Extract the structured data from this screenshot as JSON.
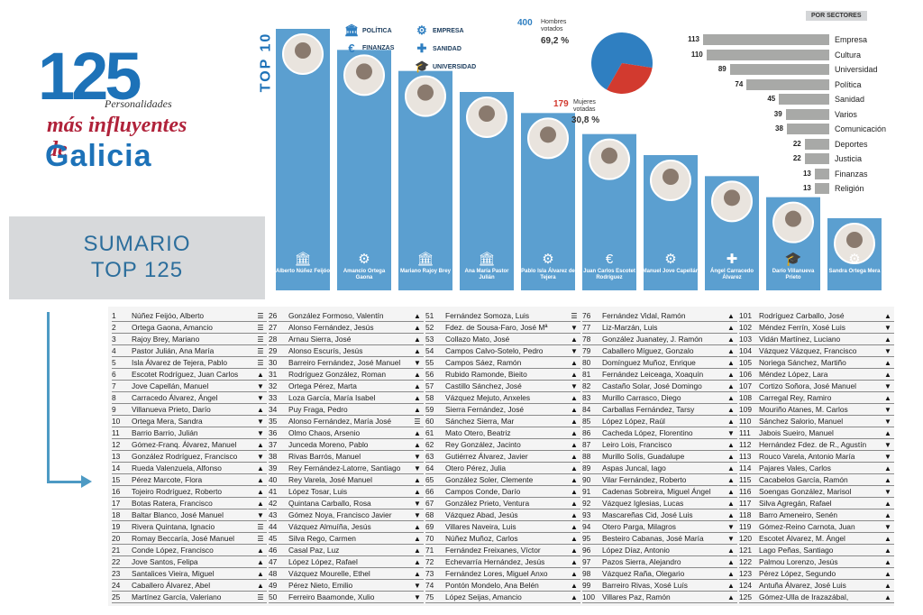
{
  "logo": {
    "number": "125",
    "line1": "Personalidades",
    "line2": "más influyentes de",
    "line3": "Galicia"
  },
  "sumario": {
    "line1": "SUMARIO",
    "line2": "TOP 125"
  },
  "top10": {
    "label": "TOP 10",
    "legend": [
      {
        "icon": "columns-icon",
        "glyph": "🏛",
        "label": "POLÍTICA"
      },
      {
        "icon": "euro-icon",
        "glyph": "€",
        "label": "FINANZAS"
      },
      {
        "icon": "gears-icon",
        "glyph": "⚙",
        "label": "EMPRESA"
      },
      {
        "icon": "cross-icon",
        "glyph": "✚",
        "label": "SANIDAD"
      },
      {
        "icon": "mortarboard-icon",
        "glyph": "🎓",
        "label": "UNIVERSIDAD"
      }
    ],
    "bars": [
      {
        "name": "Alberto Núñez Feijóo",
        "glyph": "🏛",
        "rank": 1
      },
      {
        "name": "Amancio Ortega Gaona",
        "glyph": "⚙",
        "rank": 2
      },
      {
        "name": "Mariano Rajoy Brey",
        "glyph": "🏛",
        "rank": 3
      },
      {
        "name": "Ana María Pastor Julián",
        "glyph": "🏛",
        "rank": 4
      },
      {
        "name": "Pablo Isla Álvarez de Tejera",
        "glyph": "⚙",
        "rank": 5
      },
      {
        "name": "Juan Carlos Escotet Rodríguez",
        "glyph": "€",
        "rank": 6
      },
      {
        "name": "Manuel Jove Capellán",
        "glyph": "⚙",
        "rank": 7
      },
      {
        "name": "Ángel Carracedo Álvarez",
        "glyph": "✚",
        "rank": 8
      },
      {
        "name": "Darío Villanueva Prieto",
        "glyph": "🎓",
        "rank": 9
      },
      {
        "name": "Sandra Ortega Mera",
        "glyph": "⚙",
        "rank": 10
      }
    ]
  },
  "pie": {
    "men_count": "400",
    "men_label": "Hombres votados",
    "men_pct": "69,2 %",
    "women_count": "179",
    "women_label": "Mujeres votadas",
    "women_pct": "30,8 %",
    "colors": {
      "men": "#2f7fc1",
      "women": "#d23a2f"
    }
  },
  "chart_data": [
    {
      "type": "pie",
      "categories": [
        "Hombres votados",
        "Mujeres votadas"
      ],
      "values": [
        400,
        179
      ],
      "percentages": [
        "69,2 %",
        "30,8 %"
      ]
    },
    {
      "type": "bar",
      "title": "POR SECTORES",
      "categories": [
        "Empresa",
        "Cultura",
        "Universidad",
        "Política",
        "Sanidad",
        "Varios",
        "Comunicación",
        "Deportes",
        "Justicia",
        "Finanzas",
        "Religión"
      ],
      "values": [
        113,
        110,
        89,
        74,
        45,
        39,
        38,
        22,
        22,
        13,
        13
      ]
    }
  ],
  "list": {
    "columns": [
      [
        {
          "n": "1",
          "name": "Núñez Feijóo, Alberto",
          "t": "eq"
        },
        {
          "n": "2",
          "name": "Ortega Gaona, Amancio",
          "t": "eq"
        },
        {
          "n": "3",
          "name": "Rajoy Brey, Mariano",
          "t": "eq"
        },
        {
          "n": "4",
          "name": "Pastor Julián, Ana María",
          "t": "eq"
        },
        {
          "n": "5",
          "name": "Isla Álvarez de Tejera, Pablo",
          "t": "eq"
        },
        {
          "n": "6",
          "name": "Escotet Rodríguez, Juan Carlos",
          "t": "up"
        },
        {
          "n": "7",
          "name": "Jove Capellán, Manuel",
          "t": "down"
        },
        {
          "n": "8",
          "name": "Carracedo Álvarez, Ángel",
          "t": "down"
        },
        {
          "n": "9",
          "name": "Villanueva Prieto, Darío",
          "t": "up"
        },
        {
          "n": "10",
          "name": "Ortega Mera, Sandra",
          "t": "down"
        },
        {
          "n": "11",
          "name": "Barrio Barrio, Julián",
          "t": "down"
        },
        {
          "n": "12",
          "name": "Gómez-Franq. Álvarez, Manuel",
          "t": "up"
        },
        {
          "n": "13",
          "name": "González Rodríguez, Francisco",
          "t": "down"
        },
        {
          "n": "14",
          "name": "Rueda Valenzuela, Alfonso",
          "t": "up"
        },
        {
          "n": "15",
          "name": "Pérez Marcote, Flora",
          "t": "up"
        },
        {
          "n": "16",
          "name": "Tojeiro Rodríguez, Roberto",
          "t": "up"
        },
        {
          "n": "17",
          "name": "Botas Ratera, Francisco",
          "t": "up"
        },
        {
          "n": "18",
          "name": "Baltar Blanco, José Manuel",
          "t": "down"
        },
        {
          "n": "19",
          "name": "Rivera Quintana, Ignacio",
          "t": "eq"
        },
        {
          "n": "20",
          "name": "Romay Beccaría, José Manuel",
          "t": "eq"
        },
        {
          "n": "21",
          "name": "Conde López, Francisco",
          "t": "up"
        },
        {
          "n": "22",
          "name": "Jove Santos, Felipa",
          "t": "up"
        },
        {
          "n": "23",
          "name": "Santalices Vieira, Miguel",
          "t": "up"
        },
        {
          "n": "24",
          "name": "Caballero Álvarez, Abel",
          "t": "up"
        },
        {
          "n": "25",
          "name": "Martínez García, Valeriano",
          "t": "eq"
        }
      ],
      [
        {
          "n": "26",
          "name": "González Formoso, Valentín",
          "t": "up"
        },
        {
          "n": "27",
          "name": "Alonso Fernández, Jesús",
          "t": "up"
        },
        {
          "n": "28",
          "name": "Arnau Sierra, José",
          "t": "up"
        },
        {
          "n": "29",
          "name": "Alonso Escurís, Jesús",
          "t": "up"
        },
        {
          "n": "30",
          "name": "Barreiro Fernández, José Manuel",
          "t": "down"
        },
        {
          "n": "31",
          "name": "Rodríguez González, Roman",
          "t": "up"
        },
        {
          "n": "32",
          "name": "Ortega Pérez, Marta",
          "t": "up"
        },
        {
          "n": "33",
          "name": "Loza García, María Isabel",
          "t": "up"
        },
        {
          "n": "34",
          "name": "Puy Fraga, Pedro",
          "t": "up"
        },
        {
          "n": "35",
          "name": "Alonso Fernández, María José",
          "t": "eq"
        },
        {
          "n": "36",
          "name": "Olmo Chaos, Arsenio",
          "t": "up"
        },
        {
          "n": "37",
          "name": "Junceda Moreno, Pablo",
          "t": "up"
        },
        {
          "n": "38",
          "name": "Rivas Barrós, Manuel",
          "t": "down"
        },
        {
          "n": "39",
          "name": "Rey Fernández-Latorre, Santiago",
          "t": "down"
        },
        {
          "n": "40",
          "name": "Rey Varela, José Manuel",
          "t": "up"
        },
        {
          "n": "41",
          "name": "López Tosar, Luis",
          "t": "up"
        },
        {
          "n": "42",
          "name": "Quintana Carballo, Rosa",
          "t": "down"
        },
        {
          "n": "43",
          "name": "Gómez Noya, Francisco Javier",
          "t": "down"
        },
        {
          "n": "44",
          "name": "Vázquez Almuíña, Jesús",
          "t": "up"
        },
        {
          "n": "45",
          "name": "Silva Rego, Carmen",
          "t": "up"
        },
        {
          "n": "46",
          "name": "Casal Paz, Luz",
          "t": "up"
        },
        {
          "n": "47",
          "name": "López López, Rafael",
          "t": "up"
        },
        {
          "n": "48",
          "name": "Vázquez Mourelle, Ethel",
          "t": "up"
        },
        {
          "n": "49",
          "name": "Pérez Nieto, Emilio",
          "t": "down"
        },
        {
          "n": "50",
          "name": "Ferreiro Baamonde, Xulio",
          "t": "down"
        }
      ],
      [
        {
          "n": "51",
          "name": "Fernández Somoza, Luis",
          "t": "eq"
        },
        {
          "n": "52",
          "name": "Fdez. de Sousa-Faro, José Mª",
          "t": "down"
        },
        {
          "n": "53",
          "name": "Collazo Mato, José",
          "t": "up"
        },
        {
          "n": "54",
          "name": "Campos Calvo-Sotelo, Pedro",
          "t": "down"
        },
        {
          "n": "55",
          "name": "Campos Sáez, Ramón",
          "t": "up"
        },
        {
          "n": "56",
          "name": "Rubido Ramonde, Bieito",
          "t": "up"
        },
        {
          "n": "57",
          "name": "Castillo Sánchez, José",
          "t": "down"
        },
        {
          "n": "58",
          "name": "Vázquez Mejuto, Anxeles",
          "t": "up"
        },
        {
          "n": "59",
          "name": "Sierra Fernández, José",
          "t": "up"
        },
        {
          "n": "60",
          "name": "Sánchez Sierra, Mar",
          "t": "up"
        },
        {
          "n": "61",
          "name": "Mato Otero, Beatriz",
          "t": "up"
        },
        {
          "n": "62",
          "name": "Rey González, Jacinto",
          "t": "up"
        },
        {
          "n": "63",
          "name": "Gutiérrez Álvarez, Javier",
          "t": "up"
        },
        {
          "n": "64",
          "name": "Otero Pérez, Julia",
          "t": "up"
        },
        {
          "n": "65",
          "name": "González Soler, Clemente",
          "t": "up"
        },
        {
          "n": "66",
          "name": "Campos Conde, Darío",
          "t": "up"
        },
        {
          "n": "67",
          "name": "González Prieto, Ventura",
          "t": "up"
        },
        {
          "n": "68",
          "name": "Vázquez Abad, Jesús",
          "t": "up"
        },
        {
          "n": "69",
          "name": "Villares Naveira, Luis",
          "t": "up"
        },
        {
          "n": "70",
          "name": "Núñez Muñoz, Carlos",
          "t": "up"
        },
        {
          "n": "71",
          "name": "Fernández Freixanes, Víctor",
          "t": "up"
        },
        {
          "n": "72",
          "name": "Echevarría Hernández, Jesús",
          "t": "up"
        },
        {
          "n": "73",
          "name": "Fernández Lores, Miguel Anxo",
          "t": "up"
        },
        {
          "n": "74",
          "name": "Pontón Mondelo, Ana Belén",
          "t": "up"
        },
        {
          "n": "75",
          "name": "López Seijas, Amancio",
          "t": "up"
        }
      ],
      [
        {
          "n": "76",
          "name": "Fernández Vidal, Ramón",
          "t": "up"
        },
        {
          "n": "77",
          "name": "Liz-Marzán, Luis",
          "t": "up"
        },
        {
          "n": "78",
          "name": "González Juanatey, J. Ramón",
          "t": "up"
        },
        {
          "n": "79",
          "name": "Caballero Míguez, Gonzalo",
          "t": "up"
        },
        {
          "n": "80",
          "name": "Domínguez Muñoz, Enrique",
          "t": "up"
        },
        {
          "n": "81",
          "name": "Fernández Leiceaga, Xoaquín",
          "t": "up"
        },
        {
          "n": "82",
          "name": "Castaño Solar, José Domingo",
          "t": "up"
        },
        {
          "n": "83",
          "name": "Murillo Carrasco, Diego",
          "t": "up"
        },
        {
          "n": "84",
          "name": "Carballas Fernández, Tarsy",
          "t": "up"
        },
        {
          "n": "85",
          "name": "López López, Raúl",
          "t": "up"
        },
        {
          "n": "86",
          "name": "Cacheda López, Florentino",
          "t": "down"
        },
        {
          "n": "87",
          "name": "Leiro Lois, Francisco",
          "t": "up"
        },
        {
          "n": "88",
          "name": "Murillo Solís, Guadalupe",
          "t": "up"
        },
        {
          "n": "89",
          "name": "Aspas Juncal, Iago",
          "t": "up"
        },
        {
          "n": "90",
          "name": "Vilar Fernández, Roberto",
          "t": "up"
        },
        {
          "n": "91",
          "name": "Cadenas Sobreira, Miguel Ángel",
          "t": "up"
        },
        {
          "n": "92",
          "name": "Vázquez Iglesias, Lucas",
          "t": "up"
        },
        {
          "n": "93",
          "name": "Mascareñas Cid, José Luis",
          "t": "up"
        },
        {
          "n": "94",
          "name": "Otero Parga, Milagros",
          "t": "down"
        },
        {
          "n": "95",
          "name": "Besteiro Cabanas, José María",
          "t": "down"
        },
        {
          "n": "96",
          "name": "López Díaz, Antonio",
          "t": "up"
        },
        {
          "n": "97",
          "name": "Pazos Sierra, Alejandro",
          "t": "up"
        },
        {
          "n": "98",
          "name": "Vázquez Raña, Olegario",
          "t": "up"
        },
        {
          "n": "99",
          "name": "Barreiro Rivas, Xosé Luís",
          "t": "up"
        },
        {
          "n": "100",
          "name": "Villares Paz, Ramón",
          "t": "up"
        }
      ],
      [
        {
          "n": "101",
          "name": "Rodríguez Carballo, José",
          "t": "up"
        },
        {
          "n": "102",
          "name": "Méndez Ferrín, Xosé Luis",
          "t": "down"
        },
        {
          "n": "103",
          "name": "Vidán Martínez, Luciano",
          "t": "up"
        },
        {
          "n": "104",
          "name": "Vázquez Vázquez, Francisco",
          "t": "down"
        },
        {
          "n": "105",
          "name": "Noriega Sánchez, Martiño",
          "t": "up"
        },
        {
          "n": "106",
          "name": "Méndez López, Lara",
          "t": "up"
        },
        {
          "n": "107",
          "name": "Cortizo Soñora, José Manuel",
          "t": "down"
        },
        {
          "n": "108",
          "name": "Carregal Rey, Ramiro",
          "t": "up"
        },
        {
          "n": "109",
          "name": "Mouriño Atanes, M. Carlos",
          "t": "down"
        },
        {
          "n": "110",
          "name": "Sánchez Salorio, Manuel",
          "t": "down"
        },
        {
          "n": "111",
          "name": "Jabois Sueiro, Manuel",
          "t": "up"
        },
        {
          "n": "112",
          "name": "Hernández Fdez. de R., Agustín",
          "t": "down"
        },
        {
          "n": "113",
          "name": "Rouco Varela, Antonio María",
          "t": "down"
        },
        {
          "n": "114",
          "name": "Pajares Vales, Carlos",
          "t": "up"
        },
        {
          "n": "115",
          "name": "Cacabelos García, Ramón",
          "t": "up"
        },
        {
          "n": "116",
          "name": "Soengas González, Marisol",
          "t": "down"
        },
        {
          "n": "117",
          "name": "Silva Agregán, Rafael",
          "t": "up"
        },
        {
          "n": "118",
          "name": "Barro Ameneiro, Senén",
          "t": "up"
        },
        {
          "n": "119",
          "name": "Gómez-Reino Carnota, Juan",
          "t": "down"
        },
        {
          "n": "120",
          "name": "Escotet Álvarez, M. Ángel",
          "t": "up"
        },
        {
          "n": "121",
          "name": "Lago Peñas, Santiago",
          "t": "up"
        },
        {
          "n": "122",
          "name": "Palmou Lorenzo, Jesús",
          "t": "up"
        },
        {
          "n": "123",
          "name": "Pérez López, Segundo",
          "t": "up"
        },
        {
          "n": "124",
          "name": "Antuña Álvarez, José Luis",
          "t": "up"
        },
        {
          "n": "125",
          "name": "Gómez-Ulla de Irazazábal,",
          "t": "up"
        }
      ]
    ]
  }
}
